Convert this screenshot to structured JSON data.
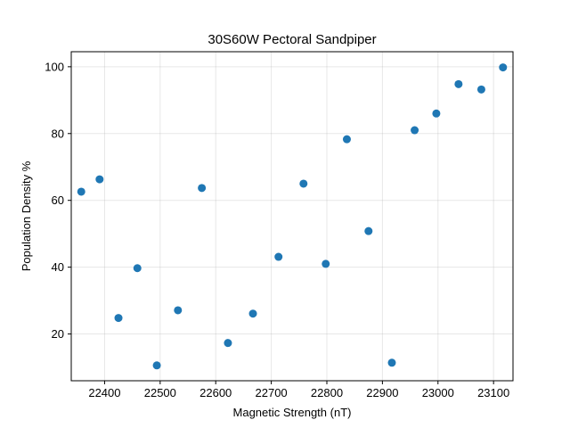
{
  "chart_data": {
    "type": "scatter",
    "title": "30S60W Pectoral Sandpiper",
    "xlabel": "Magnetic Strength (nT)",
    "ylabel": "Population Density %",
    "xlim": [
      22340,
      23135
    ],
    "ylim": [
      6,
      104.5
    ],
    "xticks": [
      22400,
      22500,
      22600,
      22700,
      22800,
      22900,
      23000,
      23100
    ],
    "yticks": [
      20,
      40,
      60,
      80,
      100
    ],
    "grid": true,
    "color": "#1f77b4",
    "points": [
      {
        "x": 22358,
        "y": 62.6
      },
      {
        "x": 22391,
        "y": 66.3
      },
      {
        "x": 22425,
        "y": 24.8
      },
      {
        "x": 22459,
        "y": 39.7
      },
      {
        "x": 22494,
        "y": 10.6
      },
      {
        "x": 22532,
        "y": 27.1
      },
      {
        "x": 22575,
        "y": 63.7
      },
      {
        "x": 22622,
        "y": 17.3
      },
      {
        "x": 22667,
        "y": 26.1
      },
      {
        "x": 22713,
        "y": 43.1
      },
      {
        "x": 22758,
        "y": 65.0
      },
      {
        "x": 22798,
        "y": 41.0
      },
      {
        "x": 22836,
        "y": 78.3
      },
      {
        "x": 22875,
        "y": 50.8
      },
      {
        "x": 22917,
        "y": 11.4
      },
      {
        "x": 22958,
        "y": 81.0
      },
      {
        "x": 22997,
        "y": 86.0
      },
      {
        "x": 23037,
        "y": 94.8
      },
      {
        "x": 23078,
        "y": 93.2
      },
      {
        "x": 23117,
        "y": 99.8
      }
    ]
  }
}
